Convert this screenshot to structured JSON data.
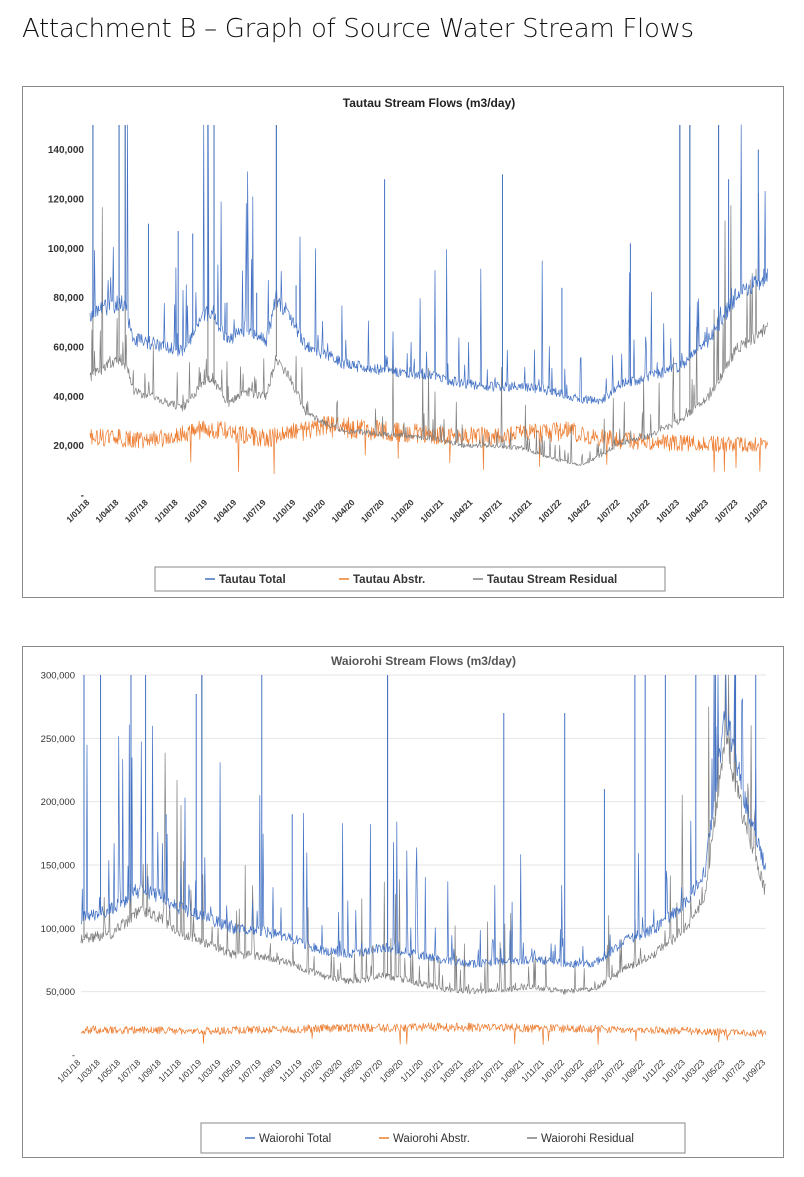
{
  "page": {
    "heading": "Attachment B – Graph of Source Water Stream Flows"
  },
  "colors": {
    "total": "#4472C4",
    "abstraction": "#ED7D31",
    "residual": "#808080"
  },
  "chart_data": [
    {
      "type": "line",
      "title": "Tautau Stream Flows (m3/day)",
      "ylim": [
        0,
        150000
      ],
      "yticks": [
        0,
        20000,
        40000,
        60000,
        80000,
        100000,
        120000,
        140000
      ],
      "ytick_labels": [
        "-",
        "20,000",
        "40,000",
        "60,000",
        "80,000",
        "100,000",
        "120,000",
        "140,000"
      ],
      "x_start": "2018-01-01",
      "x_end": "2023-10-01",
      "x_ticks": [
        "2018-01-01",
        "2018-04-01",
        "2018-07-01",
        "2018-10-01",
        "2019-01-01",
        "2019-04-01",
        "2019-07-01",
        "2019-10-01",
        "2020-01-01",
        "2020-04-01",
        "2020-07-01",
        "2020-10-01",
        "2021-01-01",
        "2021-04-01",
        "2021-07-01",
        "2021-10-01",
        "2022-01-01",
        "2022-04-01",
        "2022-07-01",
        "2022-10-01",
        "2023-01-01",
        "2023-04-01",
        "2023-07-01",
        "2023-10-01"
      ],
      "x_tick_labels": [
        "1/01/18",
        "1/04/18",
        "1/07/18",
        "1/10/18",
        "1/01/19",
        "1/04/19",
        "1/07/19",
        "1/10/19",
        "1/01/20",
        "1/04/20",
        "1/07/20",
        "1/10/20",
        "1/01/21",
        "1/04/21",
        "1/07/21",
        "1/10/21",
        "1/01/22",
        "1/04/22",
        "1/07/22",
        "1/10/22",
        "1/01/23",
        "1/04/23",
        "1/07/23",
        "1/10/23"
      ],
      "legend_position": "bottom",
      "series": [
        {
          "name": "Tautau Total",
          "color": "#4472C4",
          "points": [
            [
              "2018-01-01",
              73000
            ],
            [
              "2018-02-15",
              76000
            ],
            [
              "2018-04-15",
              78000
            ],
            [
              "2018-05-15",
              63000
            ],
            [
              "2018-08-01",
              61000
            ],
            [
              "2018-10-15",
              58000
            ],
            [
              "2018-12-15",
              72000
            ],
            [
              "2019-01-15",
              75000
            ],
            [
              "2019-03-01",
              62000
            ],
            [
              "2019-05-01",
              68000
            ],
            [
              "2019-07-01",
              63000
            ],
            [
              "2019-08-01",
              80000
            ],
            [
              "2019-09-15",
              72000
            ],
            [
              "2019-11-01",
              60000
            ],
            [
              "2020-01-01",
              57000
            ],
            [
              "2020-03-01",
              53000
            ],
            [
              "2020-06-01",
              51000
            ],
            [
              "2020-09-01",
              50000
            ],
            [
              "2020-12-01",
              48000
            ],
            [
              "2021-03-01",
              45000
            ],
            [
              "2021-06-01",
              44000
            ],
            [
              "2021-09-01",
              44000
            ],
            [
              "2021-12-01",
              42000
            ],
            [
              "2022-03-01",
              39000
            ],
            [
              "2022-05-01",
              38000
            ],
            [
              "2022-07-01",
              45000
            ],
            [
              "2022-10-01",
              48000
            ],
            [
              "2023-01-01",
              52000
            ],
            [
              "2023-04-01",
              63000
            ],
            [
              "2023-07-01",
              82000
            ],
            [
              "2023-10-01",
              89000
            ]
          ],
          "spikes": [
            [
              "2018-01-10",
              150000
            ],
            [
              "2018-04-01",
              150000
            ],
            [
              "2018-04-20",
              150000
            ],
            [
              "2018-07-01",
              110000
            ],
            [
              "2018-10-01",
              107000
            ],
            [
              "2018-11-15",
              106000
            ],
            [
              "2019-01-01",
              150000
            ],
            [
              "2019-01-20",
              150000
            ],
            [
              "2019-03-01",
              78000
            ],
            [
              "2019-06-01",
              82000
            ],
            [
              "2019-08-01",
              150000
            ],
            [
              "2019-10-01",
              85000
            ],
            [
              "2020-07-01",
              128000
            ],
            [
              "2021-07-01",
              130000
            ],
            [
              "2022-01-01",
              84000
            ],
            [
              "2022-08-01",
              102000
            ],
            [
              "2023-01-01",
              150000
            ],
            [
              "2023-02-01",
              150000
            ],
            [
              "2023-05-01",
              150000
            ],
            [
              "2023-06-01",
              128000
            ],
            [
              "2023-09-01",
              140000
            ]
          ]
        },
        {
          "name": "Tautau Abstr.",
          "color": "#ED7D31",
          "points": [
            [
              "2018-01-01",
              24000
            ],
            [
              "2018-07-01",
              22000
            ],
            [
              "2019-01-01",
              27000
            ],
            [
              "2019-07-01",
              23000
            ],
            [
              "2020-01-01",
              28000
            ],
            [
              "2020-07-01",
              26000
            ],
            [
              "2021-01-01",
              24000
            ],
            [
              "2021-07-01",
              24000
            ],
            [
              "2022-01-01",
              26000
            ],
            [
              "2022-07-01",
              22000
            ],
            [
              "2023-01-01",
              21000
            ],
            [
              "2023-10-01",
              20000
            ]
          ],
          "spikes": []
        },
        {
          "name": "Tautau Stream Residual",
          "color": "#808080",
          "points": [
            [
              "2018-01-01",
              48000
            ],
            [
              "2018-02-15",
              52000
            ],
            [
              "2018-04-15",
              55000
            ],
            [
              "2018-05-15",
              42000
            ],
            [
              "2018-08-01",
              39000
            ],
            [
              "2018-10-15",
              35000
            ],
            [
              "2018-12-15",
              45000
            ],
            [
              "2019-01-15",
              48000
            ],
            [
              "2019-03-01",
              37000
            ],
            [
              "2019-05-01",
              42000
            ],
            [
              "2019-07-01",
              40000
            ],
            [
              "2019-08-01",
              56000
            ],
            [
              "2019-09-15",
              47000
            ],
            [
              "2019-11-01",
              33000
            ],
            [
              "2020-01-01",
              29000
            ],
            [
              "2020-03-01",
              26000
            ],
            [
              "2020-06-01",
              25000
            ],
            [
              "2020-09-01",
              24000
            ],
            [
              "2020-12-01",
              23000
            ],
            [
              "2021-03-01",
              20000
            ],
            [
              "2021-06-01",
              20000
            ],
            [
              "2021-09-01",
              19000
            ],
            [
              "2021-12-01",
              15000
            ],
            [
              "2022-03-01",
              12000
            ],
            [
              "2022-05-01",
              16000
            ],
            [
              "2022-07-01",
              21000
            ],
            [
              "2022-10-01",
              24000
            ],
            [
              "2023-01-01",
              30000
            ],
            [
              "2023-04-01",
              40000
            ],
            [
              "2023-07-01",
              60000
            ],
            [
              "2023-10-01",
              68000
            ]
          ],
          "spikes": [
            [
              "2018-01-10",
              150000
            ],
            [
              "2018-04-01",
              150000
            ],
            [
              "2018-04-20",
              150000
            ],
            [
              "2019-01-01",
              150000
            ],
            [
              "2019-01-20",
              150000
            ],
            [
              "2019-08-01",
              150000
            ],
            [
              "2023-01-01",
              150000
            ],
            [
              "2023-02-01",
              150000
            ],
            [
              "2023-05-01",
              150000
            ]
          ]
        }
      ]
    },
    {
      "type": "line",
      "title": "Waiorohi Stream Flows (m3/day)",
      "ylim": [
        0,
        300000
      ],
      "yticks": [
        0,
        50000,
        100000,
        150000,
        200000,
        250000,
        300000
      ],
      "ytick_labels": [
        "-",
        "50,000",
        "100,000",
        "150,000",
        "200,000",
        "250,000",
        "300,000"
      ],
      "x_start": "2018-01-01",
      "x_end": "2023-09-01",
      "x_ticks": [
        "2018-01-01",
        "2018-03-01",
        "2018-05-01",
        "2018-07-01",
        "2018-09-01",
        "2018-11-01",
        "2019-01-01",
        "2019-03-01",
        "2019-05-01",
        "2019-07-01",
        "2019-09-01",
        "2019-11-01",
        "2020-01-01",
        "2020-03-01",
        "2020-05-01",
        "2020-07-01",
        "2020-09-01",
        "2020-11-01",
        "2021-01-01",
        "2021-03-01",
        "2021-05-01",
        "2021-07-01",
        "2021-09-01",
        "2021-11-01",
        "2022-01-01",
        "2022-03-01",
        "2022-05-01",
        "2022-07-01",
        "2022-09-01",
        "2022-11-01",
        "2023-01-01",
        "2023-03-01",
        "2023-05-01",
        "2023-07-01",
        "2023-09-01"
      ],
      "x_tick_labels": [
        "1/01/18",
        "1/03/18",
        "1/05/18",
        "1/07/18",
        "1/09/18",
        "1/11/18",
        "1/01/19",
        "1/03/19",
        "1/05/19",
        "1/07/19",
        "1/09/19",
        "1/11/19",
        "1/01/20",
        "1/03/20",
        "1/05/20",
        "1/07/20",
        "1/09/20",
        "1/11/20",
        "1/01/21",
        "1/03/21",
        "1/05/21",
        "1/07/21",
        "1/09/21",
        "1/11/21",
        "1/01/22",
        "1/03/22",
        "1/05/22",
        "1/07/22",
        "1/09/22",
        "1/11/22",
        "1/01/23",
        "1/03/23",
        "1/05/23",
        "1/07/23",
        "1/09/23"
      ],
      "legend_position": "bottom",
      "series": [
        {
          "name": "Waiorohi Total",
          "color": "#4472C4",
          "points": [
            [
              "2018-01-01",
              108000
            ],
            [
              "2018-04-01",
              115000
            ],
            [
              "2018-07-01",
              130000
            ],
            [
              "2018-09-01",
              125000
            ],
            [
              "2018-11-01",
              115000
            ],
            [
              "2019-01-01",
              110000
            ],
            [
              "2019-04-01",
              100000
            ],
            [
              "2019-07-01",
              98000
            ],
            [
              "2019-10-01",
              92000
            ],
            [
              "2020-01-01",
              82000
            ],
            [
              "2020-04-01",
              80000
            ],
            [
              "2020-07-01",
              85000
            ],
            [
              "2020-10-01",
              80000
            ],
            [
              "2021-01-01",
              75000
            ],
            [
              "2021-04-01",
              72000
            ],
            [
              "2021-07-01",
              74000
            ],
            [
              "2021-10-01",
              75000
            ],
            [
              "2022-01-01",
              72000
            ],
            [
              "2022-04-01",
              72000
            ],
            [
              "2022-07-01",
              90000
            ],
            [
              "2022-10-01",
              100000
            ],
            [
              "2023-01-01",
              120000
            ],
            [
              "2023-03-01",
              145000
            ],
            [
              "2023-05-01",
              270000
            ],
            [
              "2023-07-01",
              200000
            ],
            [
              "2023-09-01",
              145000
            ]
          ],
          "spikes": [
            [
              "2018-01-10",
              300000
            ],
            [
              "2018-03-01",
              300000
            ],
            [
              "2018-06-01",
              300000
            ],
            [
              "2018-07-15",
              300000
            ],
            [
              "2018-09-15",
              190000
            ],
            [
              "2018-12-15",
              285000
            ],
            [
              "2019-01-01",
              300000
            ],
            [
              "2019-07-01",
              300000
            ],
            [
              "2019-10-01",
              190000
            ],
            [
              "2020-07-15",
              300000
            ],
            [
              "2021-07-01",
              270000
            ],
            [
              "2022-01-01",
              270000
            ],
            [
              "2022-05-01",
              210000
            ],
            [
              "2022-08-01",
              300000
            ],
            [
              "2022-09-01",
              300000
            ],
            [
              "2022-11-01",
              300000
            ],
            [
              "2023-02-01",
              300000
            ],
            [
              "2023-04-01",
              300000
            ],
            [
              "2023-06-01",
              300000
            ],
            [
              "2023-08-01",
              300000
            ]
          ]
        },
        {
          "name": "Waiorohi Abstr.",
          "color": "#ED7D31",
          "points": [
            [
              "2018-01-01",
              20000
            ],
            [
              "2019-01-01",
              19000
            ],
            [
              "2020-01-01",
              21000
            ],
            [
              "2021-01-01",
              22000
            ],
            [
              "2022-01-01",
              21000
            ],
            [
              "2023-01-01",
              19000
            ],
            [
              "2023-09-01",
              17000
            ]
          ],
          "spikes": []
        },
        {
          "name": "Waiorohi Residual",
          "color": "#808080",
          "points": [
            [
              "2018-01-01",
              92000
            ],
            [
              "2018-04-01",
              95000
            ],
            [
              "2018-07-01",
              115000
            ],
            [
              "2018-09-01",
              108000
            ],
            [
              "2018-11-01",
              96000
            ],
            [
              "2019-01-01",
              90000
            ],
            [
              "2019-04-01",
              80000
            ],
            [
              "2019-07-01",
              78000
            ],
            [
              "2019-10-01",
              72000
            ],
            [
              "2020-01-01",
              62000
            ],
            [
              "2020-04-01",
              58000
            ],
            [
              "2020-07-01",
              63000
            ],
            [
              "2020-10-01",
              58000
            ],
            [
              "2021-01-01",
              52000
            ],
            [
              "2021-04-01",
              50000
            ],
            [
              "2021-07-01",
              52000
            ],
            [
              "2021-10-01",
              54000
            ],
            [
              "2022-01-01",
              50000
            ],
            [
              "2022-04-01",
              52000
            ],
            [
              "2022-07-01",
              68000
            ],
            [
              "2022-10-01",
              80000
            ],
            [
              "2023-01-01",
              100000
            ],
            [
              "2023-03-01",
              125000
            ],
            [
              "2023-05-01",
              250000
            ],
            [
              "2023-07-01",
              180000
            ],
            [
              "2023-09-01",
              128000
            ]
          ],
          "spikes": [
            [
              "2018-01-10",
              300000
            ],
            [
              "2018-06-01",
              300000
            ],
            [
              "2019-01-01",
              300000
            ],
            [
              "2020-07-15",
              300000
            ],
            [
              "2023-04-01",
              300000
            ],
            [
              "2023-06-01",
              300000
            ]
          ]
        }
      ]
    }
  ]
}
